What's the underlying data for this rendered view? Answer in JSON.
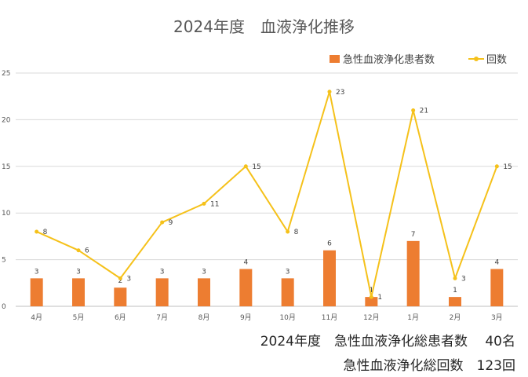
{
  "chart_data": {
    "type": "bar+line",
    "title": "2024年度　血液浄化推移",
    "categories": [
      "4月",
      "5月",
      "6月",
      "7月",
      "8月",
      "9月",
      "10月",
      "11月",
      "12月",
      "1月",
      "2月",
      "3月"
    ],
    "series": [
      {
        "name": "急性血液浄化患者数",
        "type": "bar",
        "color": "#ED7D31",
        "values": [
          3,
          3,
          2,
          3,
          3,
          4,
          3,
          6,
          1,
          7,
          1,
          4
        ]
      },
      {
        "name": "回数",
        "type": "line",
        "color": "#F5C11A",
        "values": [
          8,
          6,
          3,
          9,
          11,
          15,
          8,
          23,
          1,
          21,
          3,
          15
        ]
      }
    ],
    "y_ticks": [
      "0",
      "5",
      "10",
      "15",
      "20",
      "25"
    ],
    "ylim": [
      0,
      25
    ],
    "grid": true,
    "legend_position": "top-right"
  },
  "summary": {
    "line1": "2024年度　急性血液浄化総患者数　 40名",
    "line2": "急性血液浄化総回数　123回"
  }
}
